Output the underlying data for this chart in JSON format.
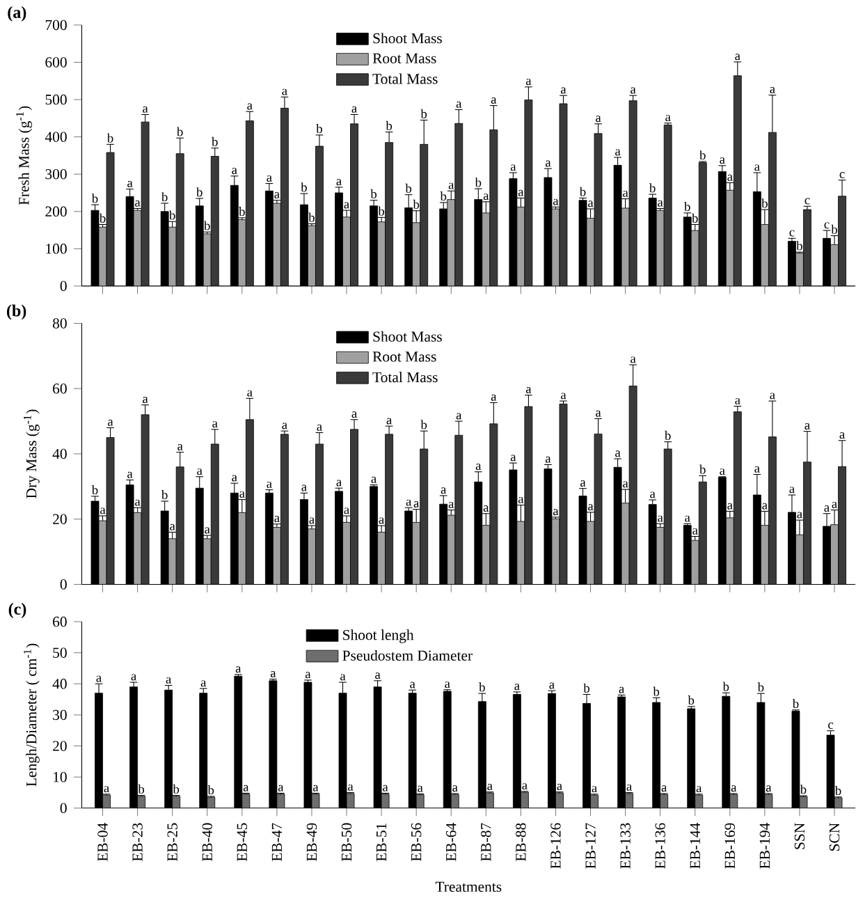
{
  "chart_data": [
    {
      "type": "bar",
      "title": "(a)",
      "ylabel": "Fresh Mass (g$^{-1}$)",
      "categories": [
        null,
        null,
        null,
        null,
        null,
        null,
        null,
        null,
        null,
        null,
        null,
        null,
        null,
        null,
        null,
        null,
        null,
        null,
        null,
        null,
        null,
        null
      ],
      "ylim": [
        0,
        700
      ],
      "yticks": [
        0,
        100,
        200,
        300,
        400,
        500,
        600,
        700
      ],
      "legend": "top",
      "tick_labels": "y",
      "series": [
        {
          "name": "Shoot Mass",
          "color": "#000000",
          "values": [
            203,
            240,
            200,
            215,
            270,
            255,
            218,
            250,
            215,
            210,
            207,
            232,
            288,
            291,
            230,
            324,
            236,
            185,
            307,
            253,
            120,
            128
          ],
          "errors": [
            15,
            20,
            22,
            20,
            25,
            20,
            30,
            15,
            15,
            35,
            17,
            29,
            16,
            24,
            6,
            21,
            10,
            11,
            16,
            51,
            8,
            21
          ],
          "value_labels": [
            "b",
            "a",
            "b",
            "b",
            "a",
            "a",
            "b",
            "a",
            "b",
            "b",
            "b",
            "b",
            "a",
            "a",
            "b",
            "a",
            "b",
            "b",
            "a",
            "a",
            "c",
            "c"
          ]
        },
        {
          "name": "Root Mass",
          "color": "#a0a0a0",
          "values": [
            158,
            203,
            158,
            140,
            178,
            222,
            162,
            185,
            172,
            170,
            232,
            196,
            212,
            207,
            182,
            209,
            203,
            149,
            257,
            165,
            88,
            111
          ],
          "errors": [
            7,
            5,
            15,
            5,
            5,
            8,
            5,
            18,
            12,
            32,
            23,
            30,
            24,
            5,
            25,
            25,
            5,
            16,
            20,
            40,
            3,
            24
          ],
          "value_labels": [
            "b",
            "a",
            "b",
            "b",
            "b",
            "a",
            "b",
            "a",
            "b",
            "b",
            "a",
            "a",
            "a",
            "a",
            "a",
            "a",
            "a",
            "b",
            "a",
            "b",
            "b",
            "b"
          ]
        },
        {
          "name": "Total Mass",
          "color": "#3a3a3a",
          "values": [
            358,
            440,
            355,
            348,
            443,
            477,
            375,
            435,
            385,
            380,
            436,
            419,
            499,
            489,
            409,
            497,
            432,
            331,
            564,
            412,
            205,
            241
          ],
          "errors": [
            22,
            20,
            42,
            22,
            25,
            30,
            30,
            25,
            28,
            65,
            37,
            65,
            35,
            22,
            26,
            14,
            5,
            3,
            37,
            100,
            9,
            43
          ],
          "value_labels": [
            "b",
            "a",
            "b",
            "b",
            "a",
            "a",
            "b",
            "a",
            "b",
            "b",
            "a",
            "a",
            "a",
            "a",
            "a",
            "a",
            "a",
            "b",
            "a",
            "a",
            "c",
            "c"
          ]
        }
      ]
    },
    {
      "type": "bar",
      "title": "(b)",
      "ylabel": "Dry Mass (g$^{-1}$)",
      "categories": [
        null,
        null,
        null,
        null,
        null,
        null,
        null,
        null,
        null,
        null,
        null,
        null,
        null,
        null,
        null,
        null,
        null,
        null,
        null,
        null,
        null,
        null
      ],
      "ylim": [
        0,
        80
      ],
      "yticks": [
        0,
        20,
        40,
        60,
        80
      ],
      "legend": "top",
      "tick_labels": "y",
      "series": [
        {
          "name": "Shoot Mass",
          "color": "#000000",
          "values": [
            25.5,
            30.5,
            22.5,
            29.5,
            28,
            28,
            26,
            28.5,
            30,
            22.5,
            24.6,
            31.4,
            35.1,
            35.4,
            27.1,
            35.9,
            24.5,
            18.1,
            32.8,
            27.4,
            22.1,
            17.8
          ],
          "errors": [
            1.5,
            1.5,
            3,
            3.5,
            3,
            1,
            2,
            1,
            0.5,
            1,
            2.6,
            3.1,
            2.1,
            1.3,
            2.3,
            2.6,
            1.4,
            0.5,
            0.2,
            6.3,
            5.3,
            3.9
          ],
          "value_labels": [
            "b",
            "a",
            "b",
            "a",
            "a",
            "a",
            "a",
            "a",
            "a",
            "a",
            "a",
            "a",
            "a",
            "a",
            "a",
            "a",
            "a",
            "a",
            "a",
            "a",
            "a",
            "a"
          ]
        },
        {
          "name": "Root Mass",
          "color": "#a0a0a0",
          "values": [
            19.5,
            22,
            14,
            14,
            22,
            17.5,
            17,
            19,
            16,
            19,
            21.2,
            18.1,
            19.3,
            20.1,
            19.3,
            24.9,
            17.5,
            13.5,
            20.4,
            18.1,
            15.2,
            18.3
          ],
          "errors": [
            1.5,
            1.5,
            2,
            1,
            4,
            1,
            1,
            2,
            2,
            4,
            1.6,
            3.6,
            5,
            0.5,
            2.8,
            4.2,
            1.1,
            1.2,
            2,
            4.3,
            4.5,
            4.5
          ],
          "value_labels": [
            "a",
            "a",
            "a",
            "a",
            "a",
            "a",
            "a",
            "a",
            "a",
            "a",
            "a",
            "a",
            "a",
            "a",
            "a",
            "a",
            "a",
            "a",
            "a",
            "a",
            "a",
            "a"
          ]
        },
        {
          "name": "Total Mass",
          "color": "#3a3a3a",
          "values": [
            45,
            52,
            36,
            43,
            50.5,
            46,
            43,
            47.5,
            46,
            41.5,
            45.7,
            49.2,
            54.5,
            55.3,
            46.1,
            60.8,
            41.5,
            31.4,
            52.9,
            45.2,
            37.5,
            36.1
          ],
          "errors": [
            3,
            3,
            4.5,
            4.5,
            6.5,
            1,
            3.5,
            3,
            2.5,
            5.5,
            4.3,
            6.5,
            3.5,
            0.9,
            4.7,
            6.5,
            2.2,
            1.9,
            1.7,
            11,
            9.4,
            8
          ],
          "value_labels": [
            "a",
            "a",
            "a",
            "a",
            "a",
            "a",
            "a",
            "a",
            "a",
            "b",
            "a",
            "a",
            "a",
            "a",
            "a",
            "a",
            "b",
            "b",
            "a",
            "a",
            "a",
            "a"
          ]
        }
      ]
    },
    {
      "type": "bar",
      "title": "(c)",
      "ylabel": "Lengh/Diameter ( cm$^{-1}$)",
      "xlabel": "Treatments",
      "categories": [
        "EB-04",
        "EB-23",
        "EB-25",
        "EB-40",
        "EB-45",
        "EB-47",
        "EB-49",
        "EB-50",
        "EB-51",
        "EB-56",
        "EB-64",
        "EB-87",
        "EB-88",
        "EB-126",
        "EB-127",
        "EB-133",
        "EB-136",
        "EB-144",
        "EB-169",
        "EB-194",
        "SSN",
        "SCN"
      ],
      "ylim": [
        0,
        60
      ],
      "yticks": [
        0,
        10,
        20,
        30,
        40,
        50,
        60
      ],
      "legend": "top",
      "series": [
        {
          "name": "Shoot lengh",
          "color": "#000000",
          "values": [
            37,
            39,
            38,
            37,
            42.5,
            41,
            40.5,
            37,
            39,
            37,
            37.6,
            34.3,
            36.6,
            36.9,
            33.7,
            35.8,
            34,
            32,
            36,
            34,
            31.2,
            23.5
          ],
          "errors": [
            3,
            1.5,
            1.5,
            1.5,
            0.5,
            0.5,
            0.7,
            3.5,
            2,
            1,
            0.5,
            2.6,
            0.8,
            0.9,
            2.9,
            0.6,
            1.5,
            0.7,
            1.1,
            2.9,
            0.4,
            1.4
          ],
          "value_labels": [
            "a",
            "a",
            "a",
            "a",
            "a",
            "a",
            "a",
            "a",
            "a",
            "a",
            "a",
            "b",
            "a",
            "a",
            "b",
            "a",
            "b",
            "b",
            "b",
            "b",
            "b",
            "c"
          ]
        },
        {
          "name": "Pseudostem Diameter",
          "color": "#6e6e6e",
          "values": [
            4.2,
            3.8,
            3.8,
            3.5,
            4.5,
            4.5,
            4.5,
            4.7,
            4.5,
            4.3,
            4.4,
            4.9,
            5.1,
            4.9,
            4.2,
            4.7,
            4.4,
            4.2,
            4.4,
            4.4,
            3.7,
            3.3
          ],
          "errors": [
            0.3,
            0.3,
            0.3,
            0.3,
            0.3,
            0.3,
            0.3,
            0.3,
            0.3,
            0.3,
            0.3,
            0.3,
            0.3,
            0.3,
            0.3,
            0.3,
            0.3,
            0.3,
            0.3,
            0.3,
            0.3,
            0.3
          ],
          "value_labels": [
            "a",
            "b",
            "b",
            "b",
            "a",
            "a",
            "a",
            "a",
            "a",
            "a",
            "a",
            "a",
            "a",
            "a",
            "a",
            "a",
            "a",
            "a",
            "a",
            "a",
            "b",
            "b"
          ]
        }
      ]
    }
  ]
}
